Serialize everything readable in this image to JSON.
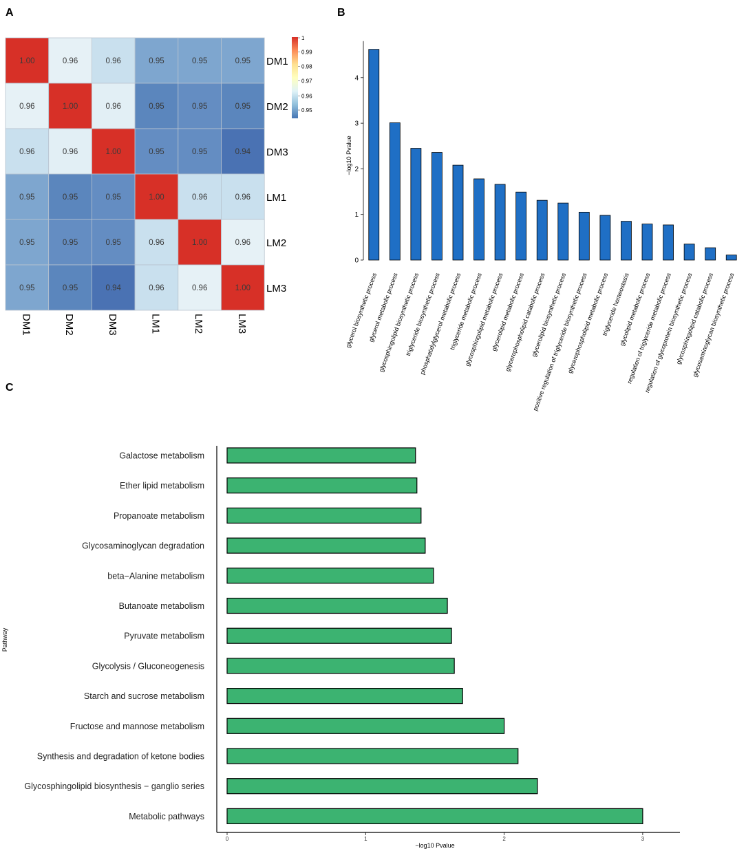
{
  "panels": {
    "a": "A",
    "b": "B",
    "c": "C"
  },
  "chart_data": [
    {
      "type": "heatmap",
      "panel": "A",
      "rows": [
        "DM1",
        "DM2",
        "DM3",
        "LM1",
        "LM2",
        "LM3"
      ],
      "cols": [
        "DM1",
        "DM2",
        "DM3",
        "LM1",
        "LM2",
        "LM3"
      ],
      "values": [
        [
          1.0,
          0.96,
          0.96,
          0.95,
          0.95,
          0.95
        ],
        [
          0.96,
          1.0,
          0.96,
          0.95,
          0.95,
          0.95
        ],
        [
          0.96,
          0.96,
          1.0,
          0.95,
          0.95,
          0.94
        ],
        [
          0.95,
          0.95,
          0.95,
          1.0,
          0.96,
          0.96
        ],
        [
          0.95,
          0.95,
          0.95,
          0.96,
          1.0,
          0.96
        ],
        [
          0.95,
          0.95,
          0.94,
          0.96,
          0.96,
          1.0
        ]
      ],
      "cell_colors": [
        [
          "#d73027",
          "#e6f1f6",
          "#c9e0ee",
          "#7ea6cf",
          "#7ea6cf",
          "#7ea6cf"
        ],
        [
          "#e6f1f6",
          "#d73027",
          "#e2eff5",
          "#5b86bd",
          "#648dc2",
          "#5b86bd"
        ],
        [
          "#c9e0ee",
          "#e2eff5",
          "#d73027",
          "#648dc2",
          "#648dc2",
          "#4a72b3"
        ],
        [
          "#7ea6cf",
          "#5b86bd",
          "#648dc2",
          "#d73027",
          "#c9e0ee",
          "#c9e0ee"
        ],
        [
          "#7ea6cf",
          "#648dc2",
          "#648dc2",
          "#c9e0ee",
          "#d73027",
          "#e6f1f6"
        ],
        [
          "#7ea6cf",
          "#5b86bd",
          "#4a72b3",
          "#c9e0ee",
          "#e6f1f6",
          "#d73027"
        ]
      ],
      "colorbar": {
        "ticks": [
          "1",
          "0.99",
          "0.98",
          "0.97",
          "0.96",
          "0.95"
        ],
        "colors": [
          "#d73027",
          "#fc8d59",
          "#fee090",
          "#ffffbf",
          "#e0f3f8",
          "#91bfdb",
          "#4575b4"
        ]
      }
    },
    {
      "type": "bar",
      "panel": "B",
      "ylabel": "−log10 Pvalue",
      "xlabel": "",
      "ylim": [
        0,
        4.8
      ],
      "yticks": [
        "0",
        "1",
        "2",
        "3",
        "4"
      ],
      "bar_color": "#1f6fc5",
      "categories": [
        "glycerol biosynthetic process",
        "glycerol metabolic process",
        "glycosphingolipid biosynthetic process",
        "triglyceride biosynthetic process",
        "phosphatidylglycerol metabolic process",
        "triglyceride metabolic process",
        "glycosphingolipid metabolic process",
        "glycerolipid metabolic process",
        "glycerophospholipid catabolic process",
        "glycerolipid biosynthetic process",
        "positive regulation of triglyceride biosynthetic process",
        "glycerophospholipid metabolic process",
        "triglyceride homeostasis",
        "glycolipid metabolic process",
        "regulation of triglyceride metabolic process",
        "regulation of glycoprotein biosynthetic process",
        "glycosphingolipid catabolic process",
        "glycosaminoglycan biosynthetic process"
      ],
      "values": [
        4.62,
        3.01,
        2.45,
        2.36,
        2.08,
        1.78,
        1.66,
        1.49,
        1.31,
        1.25,
        1.05,
        0.98,
        0.85,
        0.79,
        0.77,
        0.35,
        0.27,
        0.11
      ]
    },
    {
      "type": "bar",
      "orientation": "horizontal",
      "panel": "C",
      "ylabel": "Pathway",
      "xlabel": "−log10 Pvalue",
      "xlim": [
        0,
        3.25
      ],
      "xticks": [
        "0",
        "1",
        "2",
        "3"
      ],
      "bar_color": "#3cb371",
      "categories": [
        "Galactose metabolism",
        "Ether lipid metabolism",
        "Propanoate metabolism",
        "Glycosaminoglycan degradation",
        "beta−Alanine metabolism",
        "Butanoate metabolism",
        "Pyruvate metabolism",
        "Glycolysis / Gluconeogenesis",
        "Starch and sucrose metabolism",
        "Fructose and mannose metabolism",
        "Synthesis and degradation of ketone bodies",
        "Glycosphingolipid biosynthesis − ganglio series",
        "Metabolic pathways"
      ],
      "values": [
        1.36,
        1.37,
        1.4,
        1.43,
        1.49,
        1.59,
        1.62,
        1.64,
        1.7,
        2.0,
        2.1,
        2.24,
        3.0
      ]
    }
  ]
}
